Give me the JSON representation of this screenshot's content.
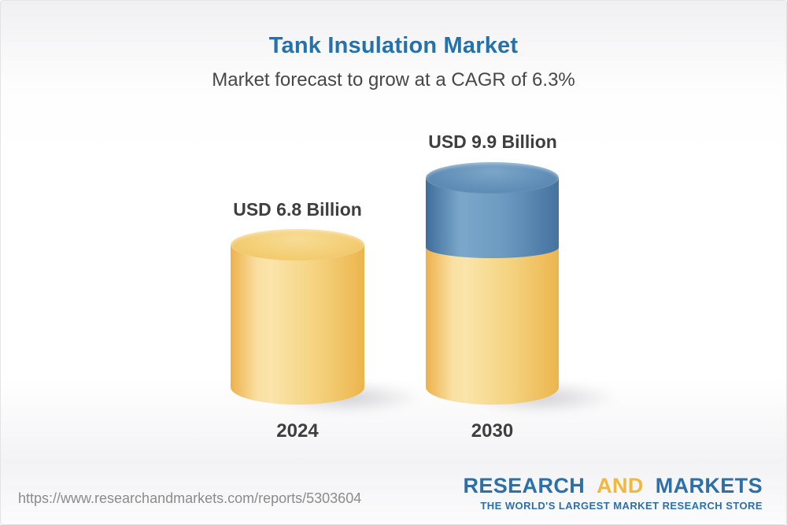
{
  "header": {
    "title": "Tank Insulation Market",
    "subtitle": "Market forecast to grow at a CAGR of 6.3%"
  },
  "chart_data": {
    "type": "bar",
    "variant": "3d-cylinder",
    "categories": [
      "2024",
      "2030"
    ],
    "values": [
      6.8,
      9.9
    ],
    "unit": "USD Billion",
    "value_labels": [
      "USD 6.8 Billion",
      "USD 9.9 Billion"
    ],
    "cagr_pct": 6.3,
    "series": [
      {
        "name": "2024 market size",
        "color": "#F3CF77"
      },
      {
        "name": "2030 forecast upper segment",
        "color": "#6292B9"
      }
    ],
    "legend": "none",
    "axes": "none",
    "ylim": [
      0,
      9.9
    ]
  },
  "footer": {
    "url": "https://www.researchandmarkets.com/reports/5303604",
    "logo": {
      "word1": "RESEARCH",
      "word2": "AND",
      "word3": "MARKETS",
      "tagline": "THE WORLD'S LARGEST MARKET RESEARCH STORE"
    }
  },
  "colors": {
    "title_blue": "#2471AC",
    "text_dark": "#3E3E3E",
    "url_gray": "#8B8B8B",
    "logo_blue": "#2E6FA8",
    "logo_gold": "#EFB83E",
    "bar_yellow": "#F3CF77",
    "bar_blue": "#6292B9"
  }
}
